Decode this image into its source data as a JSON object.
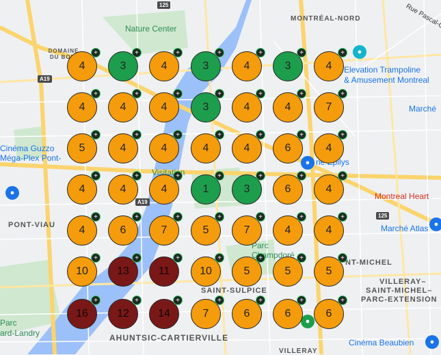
{
  "map": {
    "labels": [
      {
        "key": "nature_center",
        "text": "Nature Center",
        "cls": "poi-green"
      },
      {
        "key": "montreal_nord",
        "text": "MONTRÉAL-NORD",
        "cls": "place"
      },
      {
        "key": "rue_pascal",
        "text": "Rue Pascal-Ga",
        "cls": "dark"
      },
      {
        "key": "domaine",
        "text": "DOMAINE DU BOIS",
        "cls": "place"
      },
      {
        "key": "elevation1",
        "text": "Elevation Trampoline",
        "cls": "poi-blue"
      },
      {
        "key": "elevation2",
        "text": "& Amusement Montreal",
        "cls": "poi-blue"
      },
      {
        "key": "marche_right",
        "text": "Marché",
        "cls": "poi-blue"
      },
      {
        "key": "cinema_guzzo1",
        "text": "Cinéma Guzzo",
        "cls": "poi-blue"
      },
      {
        "key": "cinema_guzzo2",
        "text": "Méga-Plex Pont-",
        "cls": "poi-blue"
      },
      {
        "key": "visitation",
        "text": "Visitation",
        "cls": "poi-green"
      },
      {
        "key": "montreal_heart",
        "text": "Montreal Heart",
        "cls": "poi-red"
      },
      {
        "key": "pont_viau",
        "text": "PONT-VIAU",
        "cls": "place"
      },
      {
        "key": "marche_atlas",
        "text": "Marché Atlas",
        "cls": "poi-blue"
      },
      {
        "key": "parc_champdore",
        "text": "Parc Champdoré",
        "cls": "poi-green"
      },
      {
        "key": "saint_michel",
        "text": "NT-MICHEL",
        "cls": "place"
      },
      {
        "key": "villeray1",
        "text": "VILLERAY–",
        "cls": "place"
      },
      {
        "key": "villeray2",
        "text": "SAINT-MICHEL–",
        "cls": "place"
      },
      {
        "key": "villeray3",
        "text": "PARC-EXTENSION",
        "cls": "place"
      },
      {
        "key": "saint_sulpice",
        "text": "SAINT-SULPICE",
        "cls": "place"
      },
      {
        "key": "parc_landry1",
        "text": "Parc",
        "cls": "poi-green"
      },
      {
        "key": "parc_landry2",
        "text": "ard-Landry",
        "cls": "poi-green"
      },
      {
        "key": "ahuntsic",
        "text": "AHUNTSIC-CARTIERVILLE",
        "cls": "place"
      },
      {
        "key": "cinema_beaubien",
        "text": "Cinéma Beaubien",
        "cls": "poi-blue"
      },
      {
        "key": "villeray_bottom",
        "text": "VILLERAY",
        "cls": "place"
      },
      {
        "key": "epilys",
        "text": "né Epilys",
        "cls": "poi-blue"
      }
    ],
    "highways": [
      {
        "key": "a125_top",
        "text": "125"
      },
      {
        "key": "a19_left",
        "text": "A19"
      },
      {
        "key": "a19_mid",
        "text": "A19"
      },
      {
        "key": "a125_right",
        "text": "125"
      }
    ]
  },
  "clusters": [
    [
      {
        "value": "4",
        "color": "orange"
      },
      {
        "value": "3",
        "color": "green"
      },
      {
        "value": "4",
        "color": "orange"
      },
      {
        "value": "3",
        "color": "green"
      },
      {
        "value": "4",
        "color": "orange"
      },
      {
        "value": "3",
        "color": "green"
      },
      {
        "value": "4",
        "color": "orange"
      }
    ],
    [
      {
        "value": "4",
        "color": "orange"
      },
      {
        "value": "4",
        "color": "orange"
      },
      {
        "value": "4",
        "color": "orange"
      },
      {
        "value": "3",
        "color": "green"
      },
      {
        "value": "4",
        "color": "orange"
      },
      {
        "value": "4",
        "color": "orange"
      },
      {
        "value": "7",
        "color": "orange"
      }
    ],
    [
      {
        "value": "5",
        "color": "orange"
      },
      {
        "value": "4",
        "color": "orange"
      },
      {
        "value": "4",
        "color": "orange"
      },
      {
        "value": "4",
        "color": "orange"
      },
      {
        "value": "4",
        "color": "orange"
      },
      {
        "value": "6",
        "color": "orange"
      },
      {
        "value": "4",
        "color": "orange"
      }
    ],
    [
      {
        "value": "4",
        "color": "orange"
      },
      {
        "value": "4",
        "color": "orange"
      },
      {
        "value": "4",
        "color": "orange"
      },
      {
        "value": "1",
        "color": "green"
      },
      {
        "value": "3",
        "color": "green"
      },
      {
        "value": "6",
        "color": "orange"
      },
      {
        "value": "4",
        "color": "orange"
      }
    ],
    [
      {
        "value": "4",
        "color": "orange"
      },
      {
        "value": "6",
        "color": "orange"
      },
      {
        "value": "7",
        "color": "orange"
      },
      {
        "value": "5",
        "color": "orange"
      },
      {
        "value": "7",
        "color": "orange"
      },
      {
        "value": "4",
        "color": "orange"
      },
      {
        "value": "4",
        "color": "orange"
      }
    ],
    [
      {
        "value": "10",
        "color": "orange"
      },
      {
        "value": "13",
        "color": "red"
      },
      {
        "value": "11",
        "color": "red"
      },
      {
        "value": "10",
        "color": "orange"
      },
      {
        "value": "5",
        "color": "orange"
      },
      {
        "value": "5",
        "color": "orange"
      },
      {
        "value": "5",
        "color": "orange"
      }
    ],
    [
      {
        "value": "16",
        "color": "red"
      },
      {
        "value": "12",
        "color": "red"
      },
      {
        "value": "14",
        "color": "red"
      },
      {
        "value": "7",
        "color": "orange"
      },
      {
        "value": "6",
        "color": "orange"
      },
      {
        "value": "6",
        "color": "orange"
      },
      {
        "value": "6",
        "color": "orange"
      }
    ]
  ],
  "colors": {
    "orange": "#f59c0c",
    "green": "#1d9e4c",
    "red": "#7a1818",
    "water": "#9cc0f9",
    "park": "#c8e6c9",
    "road": "#fbd46d"
  },
  "cluster_badge": "+"
}
